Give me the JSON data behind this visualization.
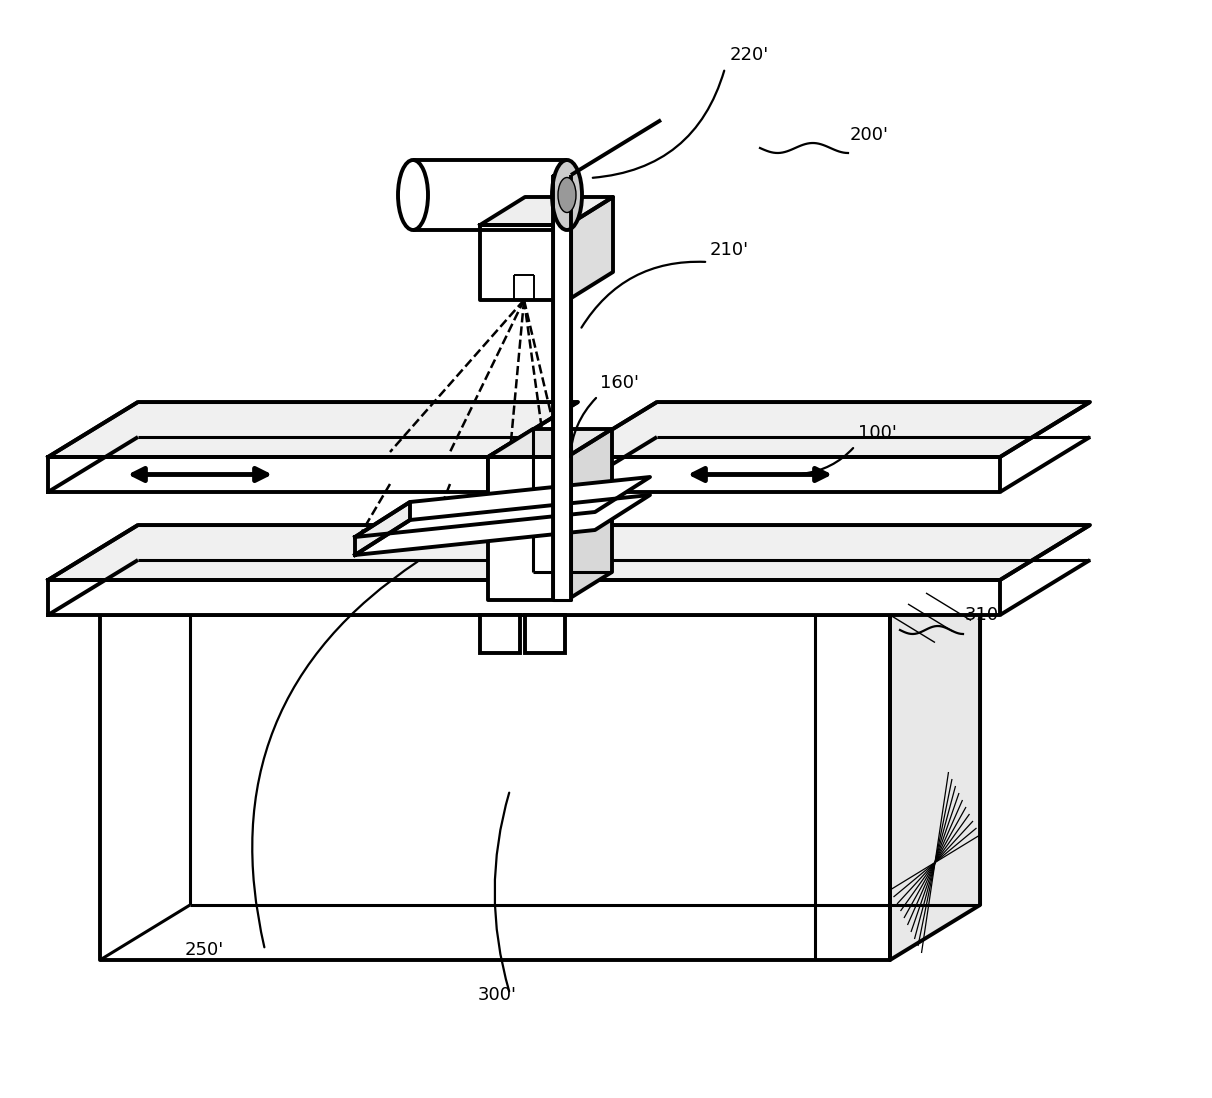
{
  "background_color": "#ffffff",
  "line_color": "#000000",
  "figsize": [
    12.12,
    10.98
  ],
  "dpi": 100,
  "lw_main": 2.2,
  "lw_thick": 2.8,
  "lw_thin": 1.4,
  "label_fontsize": 13,
  "labels": {
    "220p": "220'",
    "210p": "210'",
    "200p": "200'",
    "160p": "160'",
    "100p": "100'",
    "250p": "250'",
    "300p": "300'",
    "310p": "310'"
  }
}
